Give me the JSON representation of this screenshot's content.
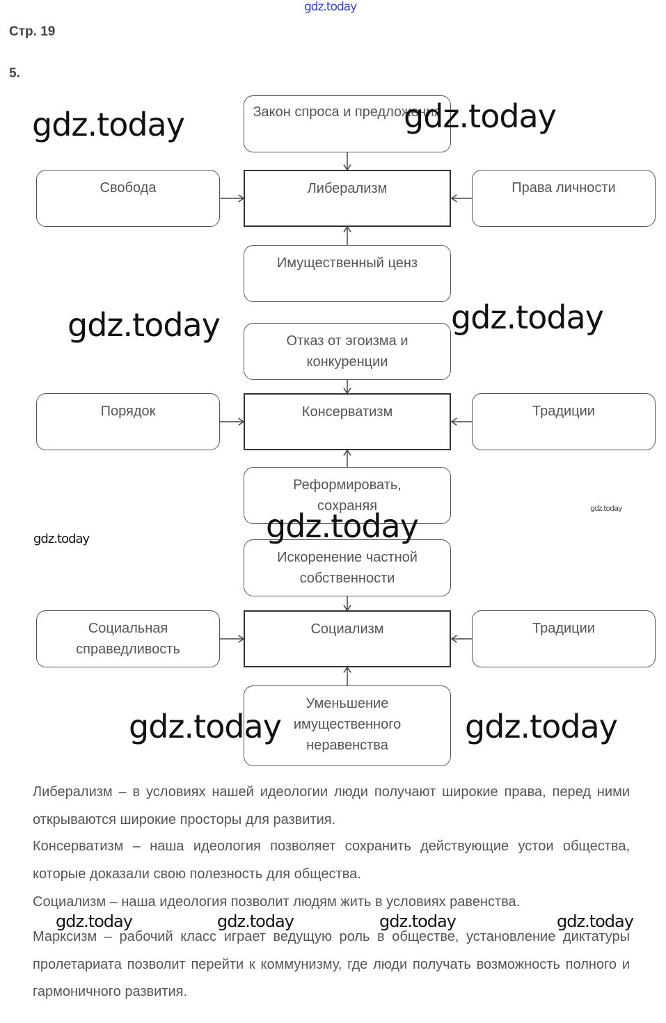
{
  "header": {
    "page": "Стр. 19",
    "task_number": "5."
  },
  "diagram": {
    "liberalism": {
      "center": "Либерализм",
      "top": "Закон спроса и предложения",
      "left": "Свобода",
      "right": "Права личности",
      "bottom": "Имущественный ценз"
    },
    "conservatism": {
      "center": "Консерватизм",
      "top": "Отказ от эгоизма и конкуренции",
      "left": "Порядок",
      "right": "Традиции",
      "bottom": "Реформировать, сохраняя"
    },
    "socialism": {
      "center": "Социализм",
      "top": "Искоренение частной собственности",
      "left": "Социальная справедливость",
      "right": "Традиции",
      "bottom": "Уменьшение имущественного неравенства"
    }
  },
  "paragraphs": [
    "Либерализм – в условиях нашей идеологии люди получают широкие права, перед ними открываются широкие просторы для развития.",
    "Консерватизм – наша идеология позволяет сохранить действующие устои общества, которые доказали свою полезность для общества.",
    "Социализм – наша идеология позволит людям жить в условиях равенства.",
    "Марксизм – рабочий класс играет ведущую роль в обществе, установление диктатуры пролетариата позволит перейти к коммунизму, где люди получать возможность полного и гармоничного развития."
  ],
  "watermark": "gdz.today",
  "colors": {
    "text": "#555555",
    "border": "#333333",
    "watermark_top": "#3344cc"
  }
}
